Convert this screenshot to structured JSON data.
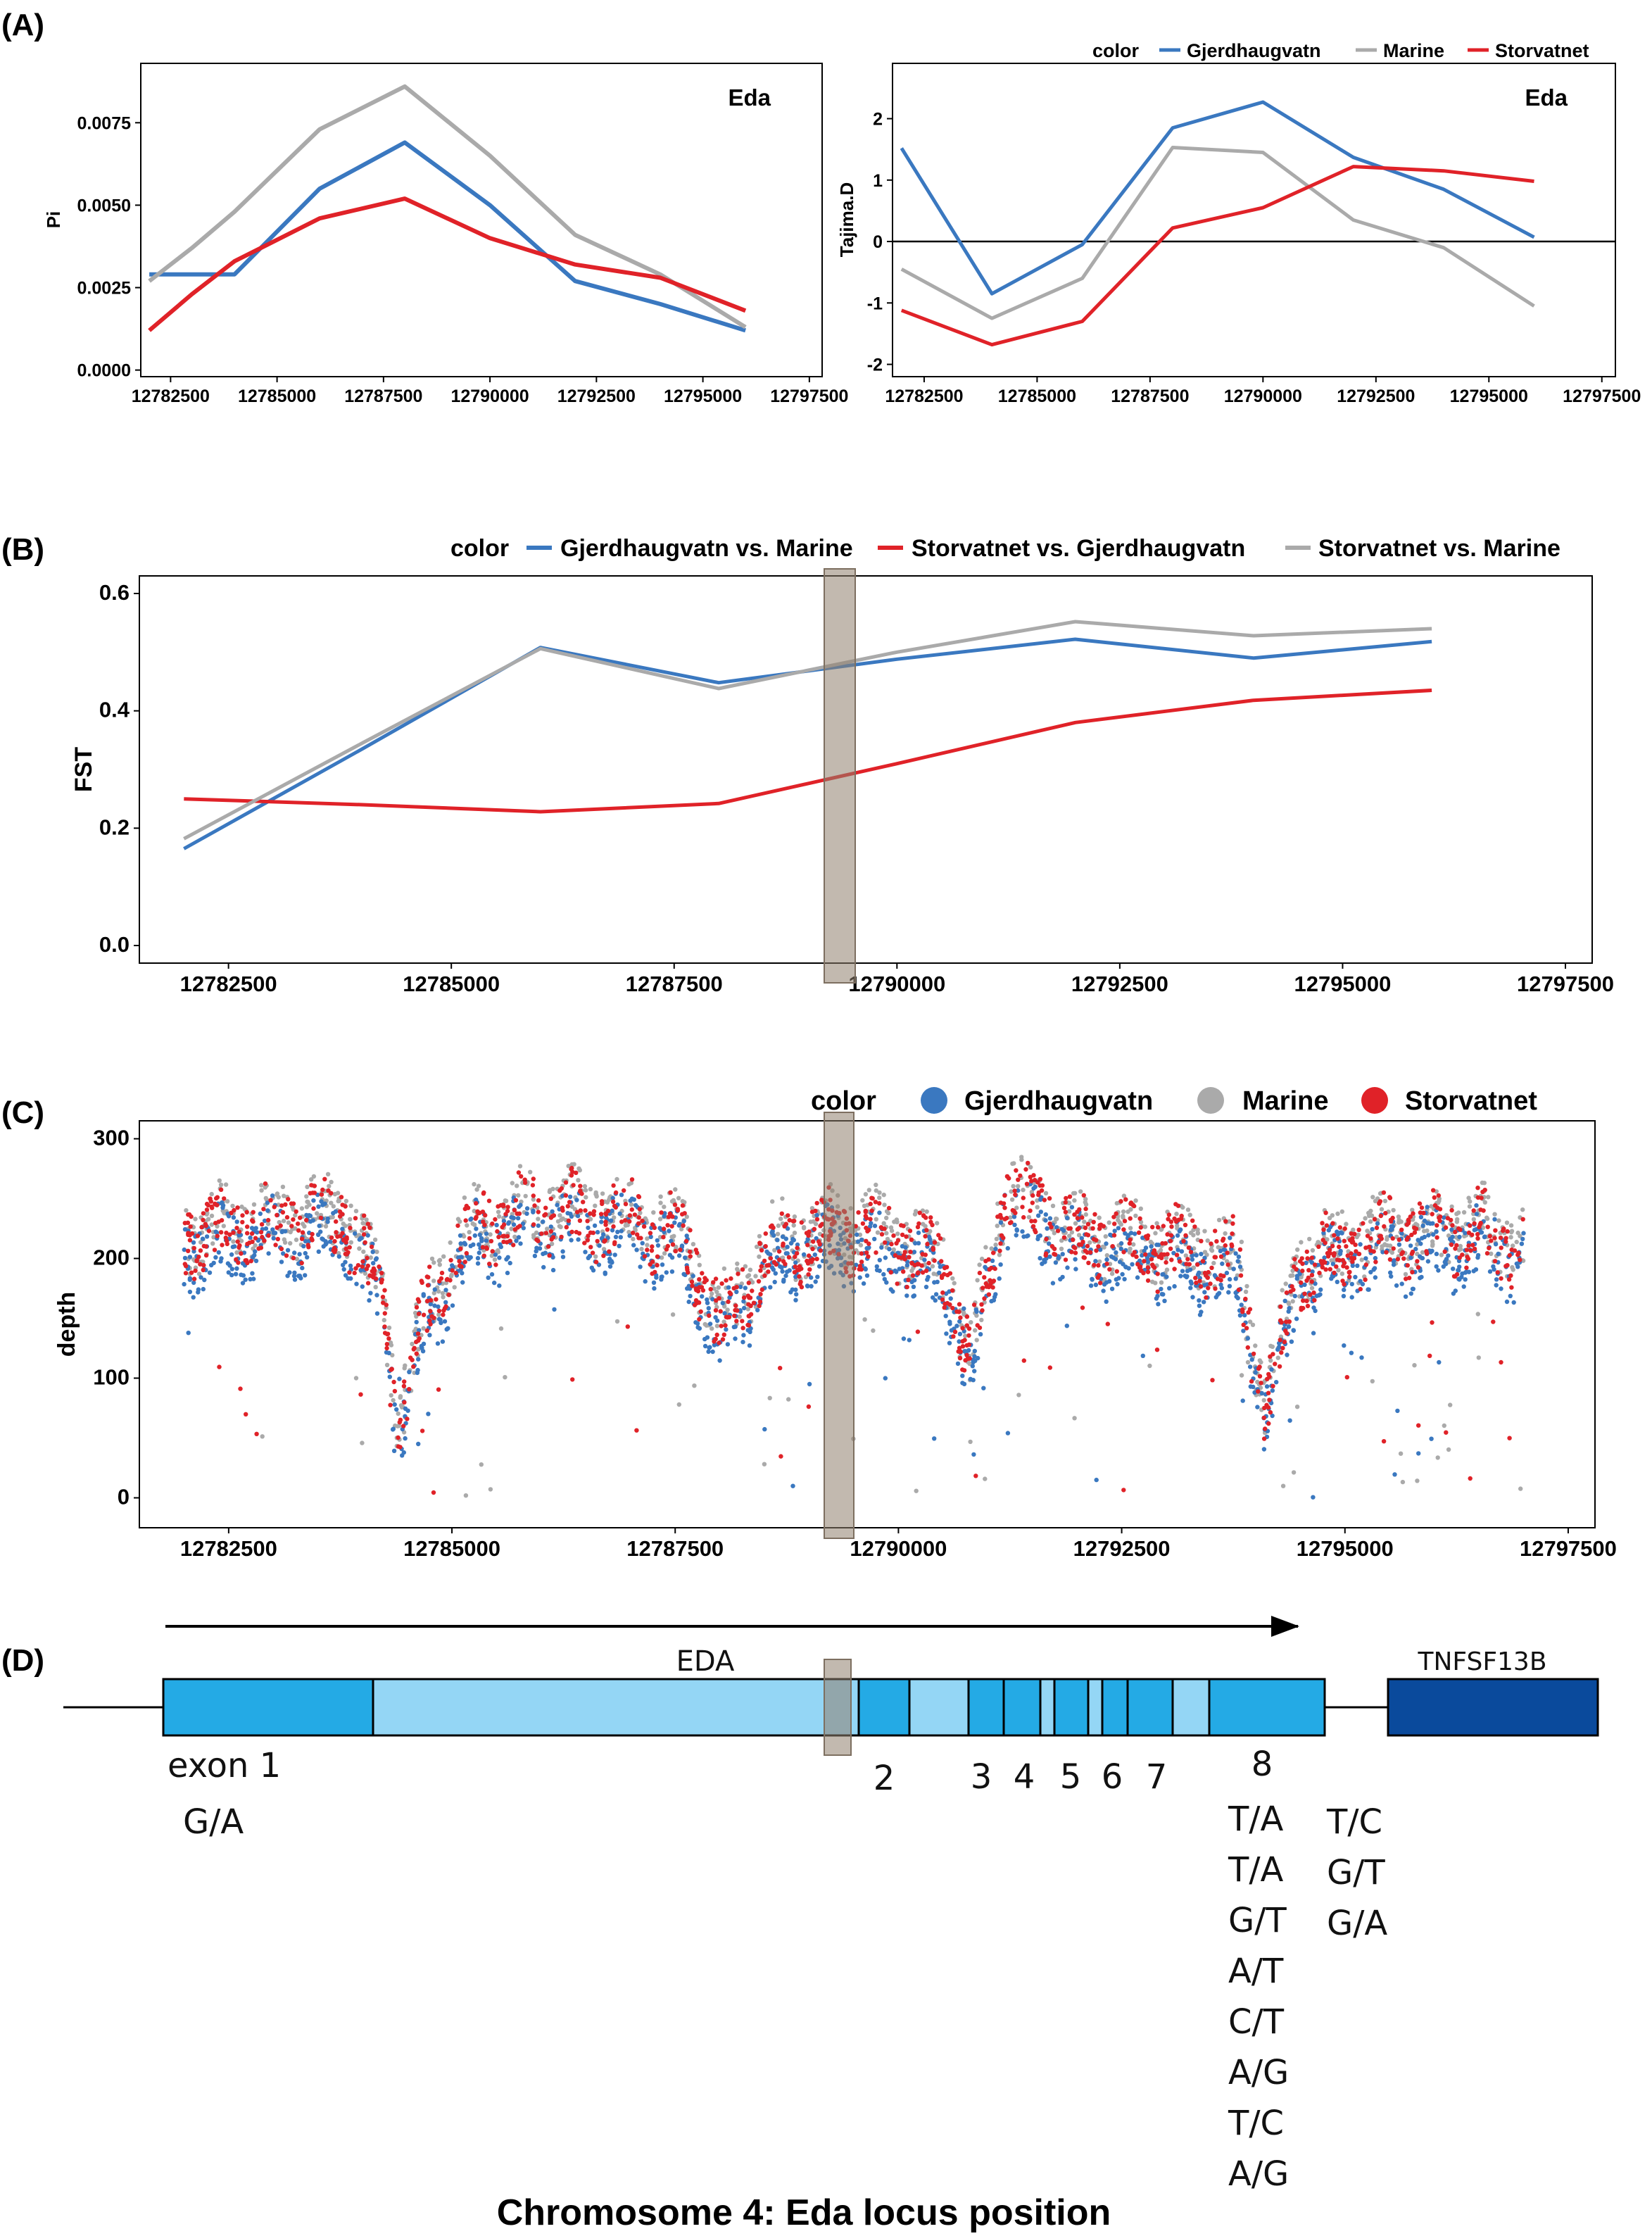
{
  "panel_labels": {
    "A": "(A)",
    "B": "(B)",
    "C": "(C)",
    "D": "(D)"
  },
  "colors": {
    "Gjerdhaugvatn": "#3a78c0",
    "Marine": "#aaaaaa",
    "Storvatnet": "#e02228",
    "highlight": "#b0a596",
    "exon_dark": "#24aae5",
    "exon_light": "#94d6f5",
    "tnf": "#0a4a9c"
  },
  "chart_data": [
    {
      "id": "A_pi",
      "type": "line",
      "title": "",
      "annotation": "Eda",
      "xlabel": "",
      "ylabel": "Pi",
      "xlim": [
        12781800,
        12797800
      ],
      "ylim": [
        -0.0002,
        0.0093
      ],
      "xticks": [
        12782500,
        12785000,
        12787500,
        12790000,
        12792500,
        12795000,
        12797500
      ],
      "xtick_labels": [
        "12782500",
        "12785000",
        "12787500",
        "12790000",
        "12792500",
        "12795000",
        "12797500"
      ],
      "yticks": [
        0.0,
        0.0025,
        0.005,
        0.0075
      ],
      "ytick_labels": [
        "0.0000",
        "0.0025",
        "0.0050",
        "0.0075"
      ],
      "x": [
        12782000,
        12783000,
        12784000,
        12786000,
        12788000,
        12790000,
        12792000,
        12794000,
        12796000
      ],
      "series": [
        {
          "name": "Gjerdhaugvatn",
          "color_key": "Gjerdhaugvatn",
          "values": [
            0.0029,
            0.0029,
            0.0029,
            0.0055,
            0.0069,
            0.005,
            0.0027,
            0.002,
            0.0012
          ]
        },
        {
          "name": "Marine",
          "color_key": "Marine",
          "values": [
            0.0027,
            0.0037,
            0.0048,
            0.0073,
            0.0086,
            0.0065,
            0.0041,
            0.0029,
            0.0013
          ]
        },
        {
          "name": "Storvatnet",
          "color_key": "Storvatnet",
          "values": [
            0.0012,
            0.0023,
            0.0033,
            0.0046,
            0.0052,
            0.004,
            0.0032,
            0.0028,
            0.0018
          ]
        }
      ]
    },
    {
      "id": "A_tajima",
      "type": "line",
      "title": "",
      "annotation": "Eda",
      "xlabel": "",
      "ylabel": "Tajima.D",
      "xlim": [
        12781800,
        12797800
      ],
      "ylim": [
        -2.2,
        2.9
      ],
      "hline": 0,
      "xticks": [
        12782500,
        12785000,
        12787500,
        12790000,
        12792500,
        12795000,
        12797500
      ],
      "xtick_labels": [
        "12782500",
        "12785000",
        "12787500",
        "12790000",
        "12792500",
        "12795000",
        "12797500"
      ],
      "yticks": [
        -2,
        -1,
        0,
        1,
        2
      ],
      "ytick_labels": [
        "-2",
        "-1",
        "0",
        "1",
        "2"
      ],
      "legend": {
        "title": "color",
        "position": "top-right",
        "entries": [
          "Gjerdhaugvatn",
          "Marine",
          "Storvatnet"
        ]
      },
      "x": [
        12782000,
        12784000,
        12786000,
        12788000,
        12790000,
        12792000,
        12794000,
        12796000
      ],
      "series": [
        {
          "name": "Gjerdhaugvatn",
          "color_key": "Gjerdhaugvatn",
          "values": [
            1.52,
            -0.85,
            -0.05,
            1.85,
            2.27,
            1.37,
            0.85,
            0.07
          ]
        },
        {
          "name": "Marine",
          "color_key": "Marine",
          "values": [
            -0.45,
            -1.25,
            -0.6,
            1.53,
            1.45,
            0.35,
            -0.1,
            -1.05
          ]
        },
        {
          "name": "Storvatnet",
          "color_key": "Storvatnet",
          "values": [
            -1.12,
            -1.68,
            -1.3,
            0.22,
            0.55,
            1.22,
            1.15,
            0.98
          ]
        }
      ]
    },
    {
      "id": "B_fst",
      "type": "line",
      "title": "",
      "xlabel": "",
      "ylabel": "FST",
      "xlim": [
        12781500,
        12797800
      ],
      "ylim": [
        -0.03,
        0.63
      ],
      "highlight_x": [
        12788800,
        12789200
      ],
      "xticks": [
        12782500,
        12785000,
        12787500,
        12790000,
        12792500,
        12795000,
        12797500
      ],
      "xtick_labels": [
        "12782500",
        "12785000",
        "12787500",
        "12790000",
        "12792500",
        "12795000",
        "12797500"
      ],
      "yticks": [
        0.0,
        0.2,
        0.4,
        0.6
      ],
      "ytick_labels": [
        "0.0",
        "0.2",
        "0.4",
        "0.6"
      ],
      "legend": {
        "title": "color",
        "position": "top",
        "entries": [
          "Gjerdhaugvatn vs. Marine",
          "Storvatnet vs. Gjerdhaugvatn",
          "Storvatnet vs. Marine"
        ]
      },
      "x": [
        12782000,
        12784000,
        12786000,
        12788000,
        12790000,
        12792000,
        12794000,
        12796000
      ],
      "series": [
        {
          "name": "Gjerdhaugvatn vs. Marine",
          "color_key": "Gjerdhaugvatn",
          "values": [
            0.165,
            0.335,
            0.508,
            0.448,
            0.488,
            0.522,
            0.49,
            0.518
          ]
        },
        {
          "name": "Storvatnet vs. Gjerdhaugvatn",
          "color_key": "Storvatnet",
          "values": [
            0.25,
            0.24,
            0.228,
            0.242,
            0.31,
            0.38,
            0.418,
            0.435
          ]
        },
        {
          "name": "Storvatnet vs. Marine",
          "color_key": "Marine",
          "values": [
            0.182,
            0.345,
            0.506,
            0.438,
            0.5,
            0.552,
            0.528,
            0.54
          ]
        }
      ]
    },
    {
      "id": "C_depth",
      "type": "scatter",
      "title": "",
      "xlabel": "",
      "ylabel": "depth",
      "xlim": [
        12781500,
        12797800
      ],
      "ylim": [
        -25,
        315
      ],
      "highlight_x": [
        12788800,
        12789200
      ],
      "xticks": [
        12782500,
        12785000,
        12787500,
        12790000,
        12792500,
        12795000,
        12797500
      ],
      "xtick_labels": [
        "12782500",
        "12785000",
        "12787500",
        "12790000",
        "12792500",
        "12795000",
        "12797500"
      ],
      "yticks": [
        0,
        100,
        200,
        300
      ],
      "ytick_labels": [
        "0",
        "100",
        "200",
        "300"
      ],
      "legend": {
        "title": "color",
        "position": "top-right",
        "entries": [
          "Gjerdhaugvatn",
          "Marine",
          "Storvatnet"
        ]
      },
      "x_range": [
        12782000,
        12797000
      ],
      "baseline": {
        "x": [
          12782000,
          12783000,
          12783800,
          12784200,
          12784400,
          12784700,
          12785200,
          12786000,
          12787000,
          12787600,
          12788000,
          12788600,
          12789400,
          12790000,
          12790500,
          12790800,
          12791200,
          12792000,
          12793000,
          12793800,
          12794100,
          12794500,
          12795500,
          12796500,
          12797000
        ],
        "y": [
          215,
          225,
          230,
          170,
          60,
          150,
          220,
          235,
          230,
          210,
          140,
          205,
          220,
          210,
          190,
          110,
          255,
          215,
          205,
          195,
          70,
          190,
          215,
          220,
          205
        ]
      },
      "series_offsets": {
        "Gjerdhaugvatn": -10,
        "Marine": 8,
        "Storvatnet": 4
      }
    }
  ],
  "gene": {
    "arrow_label": "EDA",
    "second_gene": "TNFSF13B",
    "exon_labels": [
      "exon 1",
      "2",
      "3",
      "4",
      "5",
      "6",
      "7",
      "8"
    ],
    "exon1_snps": [
      "G/A"
    ],
    "exon8_snps": [
      "T/A",
      "T/A",
      "G/T",
      "A/T",
      "C/T",
      "A/G",
      "T/C",
      "A/G"
    ],
    "tnf_snps": [
      "T/C",
      "G/T",
      "G/A"
    ]
  },
  "caption": "Chromosome 4: Eda locus position"
}
